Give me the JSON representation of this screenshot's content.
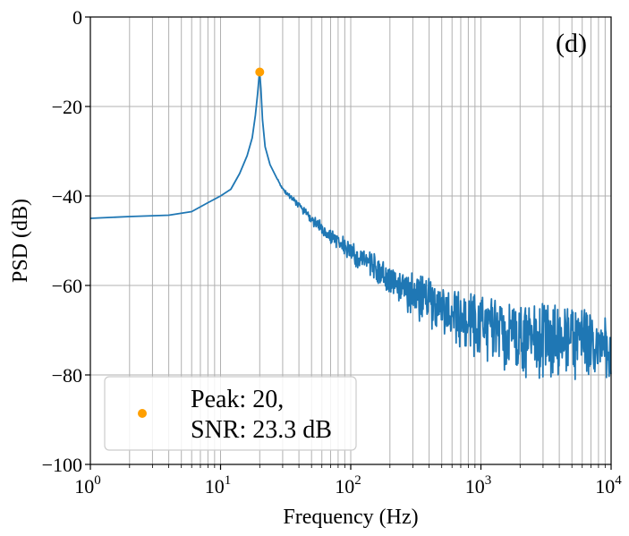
{
  "chart_data": {
    "type": "line",
    "panel_label": "(d)",
    "xlabel": "Frequency (Hz)",
    "ylabel": "PSD (dB)",
    "xscale": "log",
    "xlim": [
      1,
      10000
    ],
    "ylim": [
      -100,
      0
    ],
    "grid": true,
    "grid_which": "both",
    "x_ticks": [
      {
        "value": 1,
        "base": "10",
        "exp": "0"
      },
      {
        "value": 10,
        "base": "10",
        "exp": "1"
      },
      {
        "value": 100,
        "base": "10",
        "exp": "2"
      },
      {
        "value": 1000,
        "base": "10",
        "exp": "3"
      },
      {
        "value": 10000,
        "base": "10",
        "exp": "4"
      }
    ],
    "y_ticks": [
      {
        "value": 0,
        "label": "0"
      },
      {
        "value": -20,
        "label": "−20"
      },
      {
        "value": -40,
        "label": "−40"
      },
      {
        "value": -60,
        "label": "−60"
      },
      {
        "value": -80,
        "label": "−80"
      },
      {
        "value": -100,
        "label": "−100"
      }
    ],
    "series": [
      {
        "color": "#1f77b4",
        "envelope": [
          [
            1,
            -45,
            0
          ],
          [
            2,
            -44.6,
            0
          ],
          [
            4,
            -44.3,
            0
          ],
          [
            6,
            -43.5,
            0
          ],
          [
            8,
            -41.5,
            0
          ],
          [
            10,
            -40,
            0
          ],
          [
            12,
            -38.5,
            0
          ],
          [
            14,
            -35,
            0
          ],
          [
            16,
            -31,
            0
          ],
          [
            17.5,
            -27,
            0
          ],
          [
            18.5,
            -22,
            0
          ],
          [
            19.3,
            -17,
            0
          ],
          [
            19.8,
            -13,
            0
          ],
          [
            20,
            -12.5,
            0
          ],
          [
            20.4,
            -16,
            0
          ],
          [
            21,
            -23,
            0
          ],
          [
            22,
            -29,
            0
          ],
          [
            24,
            -33,
            0
          ],
          [
            27,
            -36,
            0
          ],
          [
            30,
            -38.5,
            0.5
          ],
          [
            40,
            -42,
            1
          ],
          [
            50,
            -45,
            1.5
          ],
          [
            70,
            -48.5,
            2
          ],
          [
            100,
            -52,
            3
          ],
          [
            150,
            -55,
            3.5
          ],
          [
            200,
            -58,
            4
          ],
          [
            300,
            -61,
            6
          ],
          [
            500,
            -64,
            7
          ],
          [
            700,
            -66,
            8
          ],
          [
            1000,
            -68,
            9
          ],
          [
            2000,
            -70,
            10
          ],
          [
            5000,
            -71,
            10
          ],
          [
            10000,
            -72,
            9
          ]
        ]
      }
    ],
    "peak_marker": {
      "x": 20,
      "y": -12.3,
      "color": "#ff9f00"
    },
    "legend": {
      "location": "lower left",
      "marker_color": "#ff9f00",
      "line1": "Peak: 20,",
      "line2": "SNR: 23.3 dB"
    }
  }
}
